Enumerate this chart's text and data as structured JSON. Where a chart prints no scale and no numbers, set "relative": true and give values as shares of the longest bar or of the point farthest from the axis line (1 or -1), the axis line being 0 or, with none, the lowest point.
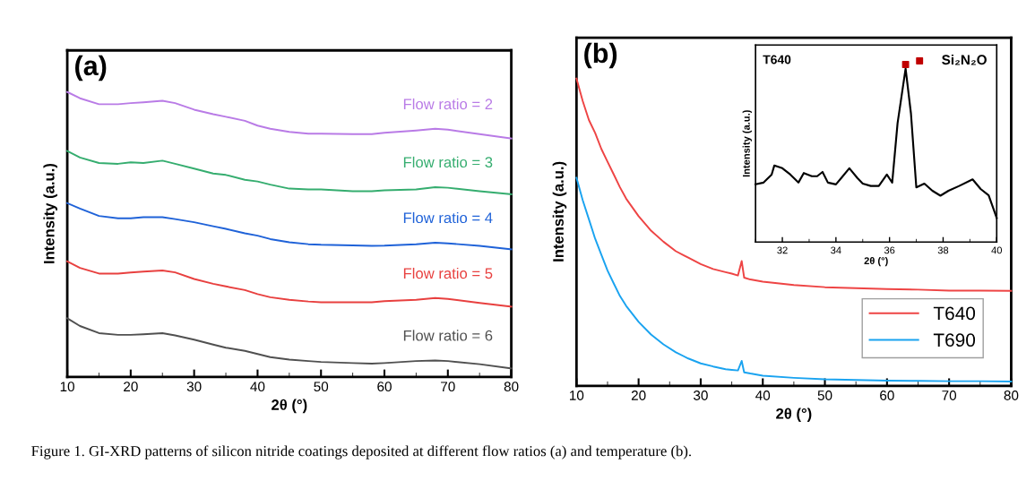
{
  "chart_data": [
    {
      "type": "line",
      "relative": true,
      "xlabel": "2θ (°)",
      "ylabel": "Intensity (a.u.)",
      "xlim": [
        10,
        80
      ],
      "xticks": [
        10,
        20,
        30,
        40,
        50,
        60,
        70,
        80
      ],
      "grid": false,
      "legend": false,
      "tick_labels": "x",
      "annotations": [
        "(a)",
        "Figure 1. GI-XRD patterns of silicon nitride coatings deposited at different flow ratios (a) and temperature (b)."
      ],
      "x": [
        10,
        12,
        15,
        18,
        20,
        22,
        25,
        27,
        30,
        33,
        35,
        38,
        40,
        42,
        45,
        48,
        50,
        55,
        58,
        60,
        65,
        68,
        70,
        75,
        80
      ],
      "series": [
        {
          "name": "Flow ratio = 2",
          "color": "#b97be6",
          "values": [
            1.0,
            0.978,
            0.957,
            0.957,
            0.961,
            0.964,
            0.969,
            0.961,
            0.938,
            0.922,
            0.913,
            0.899,
            0.882,
            0.871,
            0.86,
            0.854,
            0.854,
            0.852,
            0.852,
            0.857,
            0.865,
            0.871,
            0.868,
            0.852,
            0.837
          ]
        },
        {
          "name": "Flow ratio = 3",
          "color": "#35ad6f",
          "values": [
            0.793,
            0.77,
            0.751,
            0.748,
            0.753,
            0.751,
            0.759,
            0.748,
            0.731,
            0.714,
            0.709,
            0.692,
            0.686,
            0.675,
            0.661,
            0.658,
            0.658,
            0.652,
            0.652,
            0.655,
            0.658,
            0.666,
            0.664,
            0.652,
            0.641
          ]
        },
        {
          "name": "Flow ratio = 4",
          "color": "#1f62d8",
          "values": [
            0.61,
            0.591,
            0.565,
            0.557,
            0.557,
            0.561,
            0.561,
            0.554,
            0.543,
            0.529,
            0.52,
            0.504,
            0.496,
            0.484,
            0.473,
            0.466,
            0.464,
            0.462,
            0.46,
            0.461,
            0.466,
            0.471,
            0.469,
            0.46,
            0.448
          ]
        },
        {
          "name": "Flow ratio = 5",
          "color": "#e8403f",
          "values": [
            0.406,
            0.383,
            0.363,
            0.363,
            0.367,
            0.37,
            0.374,
            0.367,
            0.344,
            0.327,
            0.318,
            0.305,
            0.291,
            0.28,
            0.271,
            0.265,
            0.262,
            0.262,
            0.262,
            0.266,
            0.271,
            0.277,
            0.274,
            0.26,
            0.247
          ]
        },
        {
          "name": "Flow ratio = 6",
          "color": "#505050",
          "values": [
            0.206,
            0.179,
            0.154,
            0.148,
            0.148,
            0.15,
            0.154,
            0.146,
            0.131,
            0.114,
            0.103,
            0.092,
            0.081,
            0.07,
            0.061,
            0.056,
            0.053,
            0.049,
            0.047,
            0.049,
            0.056,
            0.058,
            0.056,
            0.045,
            0.03
          ]
        }
      ]
    },
    {
      "type": "line",
      "relative": true,
      "xlabel": "2θ (°)",
      "ylabel": "Intensity (a.u.)",
      "xlim": [
        10,
        80
      ],
      "xticks": [
        10,
        20,
        30,
        40,
        50,
        60,
        70,
        80
      ],
      "grid": false,
      "legend": "bottom right",
      "tick_labels": "x",
      "annotations": [
        "(b)"
      ],
      "x": [
        10,
        11,
        12,
        13,
        14,
        15,
        16,
        17,
        18,
        20,
        22,
        24,
        26,
        28,
        30,
        32,
        34,
        35,
        36,
        36.6,
        37,
        38,
        40,
        45,
        50,
        55,
        60,
        65,
        70,
        75,
        80
      ],
      "series": [
        {
          "name": "T640",
          "color": "#ee4444",
          "values": [
            1.0,
            0.927,
            0.865,
            0.823,
            0.771,
            0.729,
            0.688,
            0.646,
            0.609,
            0.552,
            0.505,
            0.469,
            0.438,
            0.417,
            0.396,
            0.38,
            0.37,
            0.365,
            0.359,
            0.406,
            0.352,
            0.346,
            0.339,
            0.328,
            0.321,
            0.318,
            0.315,
            0.313,
            0.31,
            0.31,
            0.309
          ]
        },
        {
          "name": "T690",
          "color": "#1aa3f0",
          "values": [
            0.677,
            0.604,
            0.542,
            0.479,
            0.427,
            0.375,
            0.333,
            0.292,
            0.26,
            0.208,
            0.167,
            0.135,
            0.109,
            0.089,
            0.073,
            0.063,
            0.054,
            0.052,
            0.05,
            0.081,
            0.044,
            0.04,
            0.033,
            0.026,
            0.021,
            0.019,
            0.017,
            0.016,
            0.015,
            0.015,
            0.014
          ]
        }
      ]
    },
    {
      "type": "line",
      "relative": true,
      "xlabel": "2θ (°)",
      "ylabel": "Intensity (a.u.)",
      "xlim": [
        31,
        40
      ],
      "xticks": [
        32,
        34,
        36,
        38,
        40
      ],
      "grid": false,
      "legend": "top right",
      "tick_labels": "x",
      "annotations": [
        "T640"
      ],
      "series": [
        {
          "color": "#000000",
          "x": [
            31.0,
            31.3,
            31.6,
            31.7,
            32.0,
            32.3,
            32.6,
            32.8,
            33.1,
            33.3,
            33.5,
            33.7,
            34.0,
            34.2,
            34.5,
            34.8,
            35.0,
            35.3,
            35.6,
            35.9,
            36.1,
            36.3,
            36.6,
            36.8,
            37.0,
            37.3,
            37.6,
            37.9,
            38.2,
            38.6,
            39.1,
            39.4,
            39.7,
            40.0
          ],
          "values": [
            0.325,
            0.335,
            0.38,
            0.431,
            0.416,
            0.38,
            0.335,
            0.389,
            0.371,
            0.371,
            0.395,
            0.335,
            0.325,
            0.361,
            0.416,
            0.361,
            0.329,
            0.316,
            0.316,
            0.38,
            0.335,
            0.669,
            0.977,
            0.724,
            0.308,
            0.329,
            0.289,
            0.261,
            0.289,
            0.316,
            0.353,
            0.299,
            0.263,
            0.136
          ]
        },
        {
          "type": "scatter",
          "name": "Si₂N₂O",
          "color": "#c00000",
          "marker": "square",
          "x": [
            36.6
          ],
          "values": [
            1.0
          ]
        }
      ]
    }
  ]
}
